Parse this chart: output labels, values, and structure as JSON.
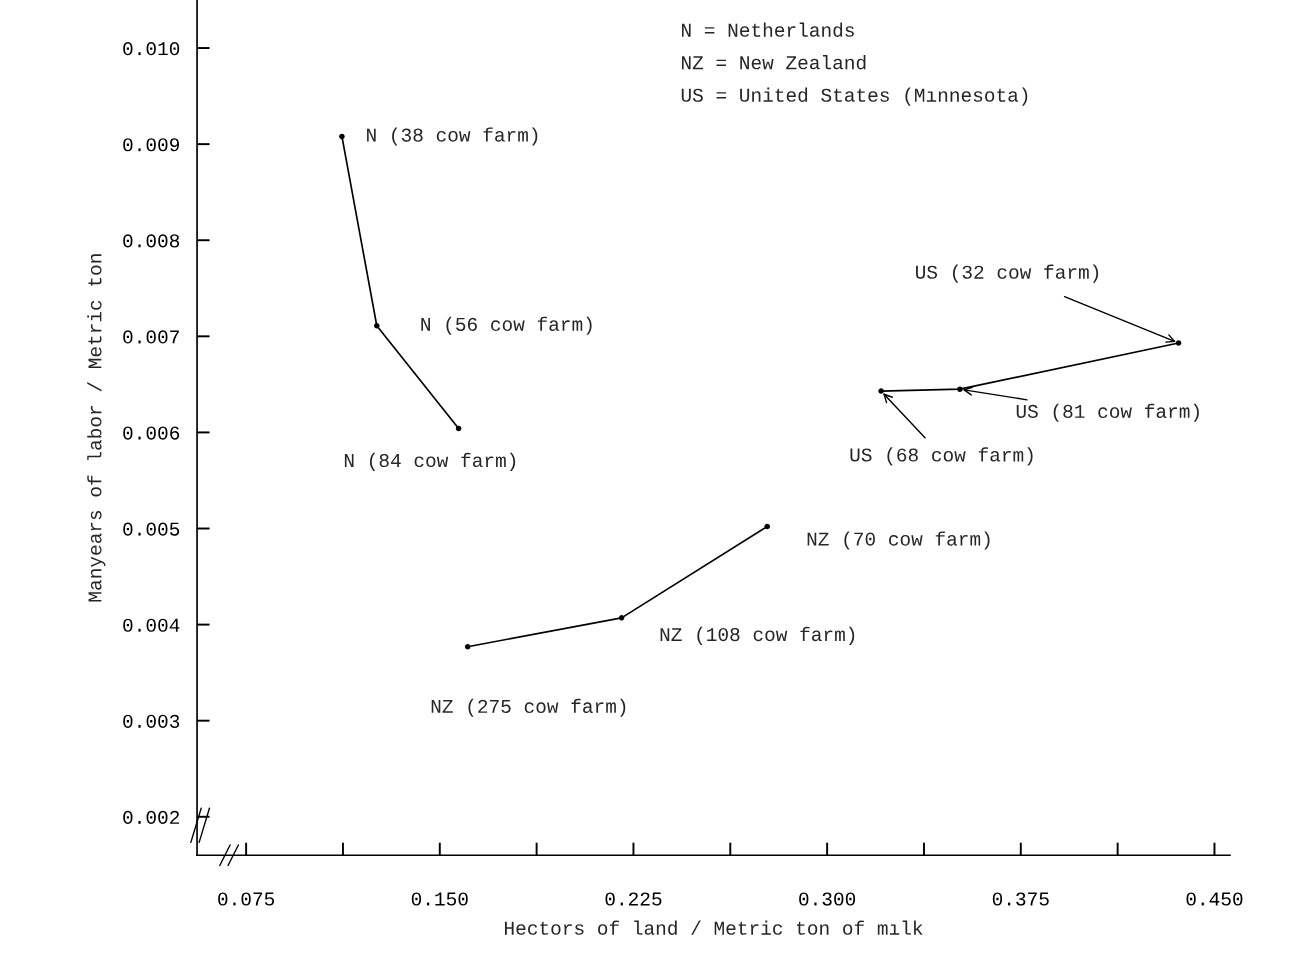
{
  "chart_data": {
    "type": "line",
    "xlabel": "Hectors of land / Metric ton of mılk",
    "ylabel": "Manyears of labor / Metric ton",
    "series": [
      {
        "color": "#000000",
        "x": [
          0.1121,
          0.1256,
          0.1573
        ],
        "values": [
          0.00908,
          0.00711,
          0.00604
        ]
      },
      {
        "color": "#000000",
        "x": [
          0.1608,
          0.2204,
          0.2768
        ],
        "values": [
          0.00377,
          0.00407,
          0.00502
        ]
      },
      {
        "color": "#000000",
        "x": [
          0.3209,
          0.3514,
          0.4361
        ],
        "values": [
          0.00643,
          0.00645,
          0.00693
        ]
      }
    ],
    "marker": "circle",
    "line_style": "solid",
    "grid": false,
    "xlim": [
      0.056,
      0.456
    ],
    "ylim": [
      0.0016,
      0.0105
    ],
    "xticks": [
      {
        "value": 0.075,
        "label": "0.075"
      },
      {
        "value": 0.1125,
        "label": null
      },
      {
        "value": 0.15,
        "label": "0.150"
      },
      {
        "value": 0.1875,
        "label": null
      },
      {
        "value": 0.225,
        "label": "0.225"
      },
      {
        "value": 0.2625,
        "label": null
      },
      {
        "value": 0.3,
        "label": "0.300"
      },
      {
        "value": 0.3375,
        "label": null
      },
      {
        "value": 0.375,
        "label": "0.375"
      },
      {
        "value": 0.4125,
        "label": null
      },
      {
        "value": 0.45,
        "label": "0.450"
      }
    ],
    "yticks": [
      {
        "value": 0.002,
        "label": "0.002"
      },
      {
        "value": 0.003,
        "label": "0.003"
      },
      {
        "value": 0.004,
        "label": "0.004"
      },
      {
        "value": 0.005,
        "label": "0.005"
      },
      {
        "value": 0.006,
        "label": "0.006"
      },
      {
        "value": 0.007,
        "label": "0.007"
      },
      {
        "value": 0.008,
        "label": "0.008"
      },
      {
        "value": 0.009,
        "label": "0.009"
      },
      {
        "value": 0.01,
        "label": "0.010"
      }
    ],
    "annotations": [
      {
        "text": "N (38 cow farm)",
        "x": 0.1121,
        "y": 0.00908
      },
      {
        "text": "N (56 cow farm)",
        "x": 0.1256,
        "y": 0.00711
      },
      {
        "text": "N (84 cow farm)",
        "x": 0.1573,
        "y": 0.00604
      },
      {
        "text": "NZ (70 cow farm)",
        "x": 0.2768,
        "y": 0.00502
      },
      {
        "text": "NZ (108 cow farm)",
        "x": 0.2204,
        "y": 0.00407
      },
      {
        "text": "NZ (275 cow farm)",
        "x": 0.1608,
        "y": 0.00377
      },
      {
        "text": "US (32 cow farm)",
        "x": 0.4361,
        "y": 0.00693
      },
      {
        "text": "US (81 cow farm)",
        "x": 0.3514,
        "y": 0.00645
      },
      {
        "text": "US (68 cow farm)",
        "x": 0.3209,
        "y": 0.00643
      },
      "N = Netherlands",
      "NZ = New Zealand",
      "US = United States (Mınnesota)"
    ]
  }
}
